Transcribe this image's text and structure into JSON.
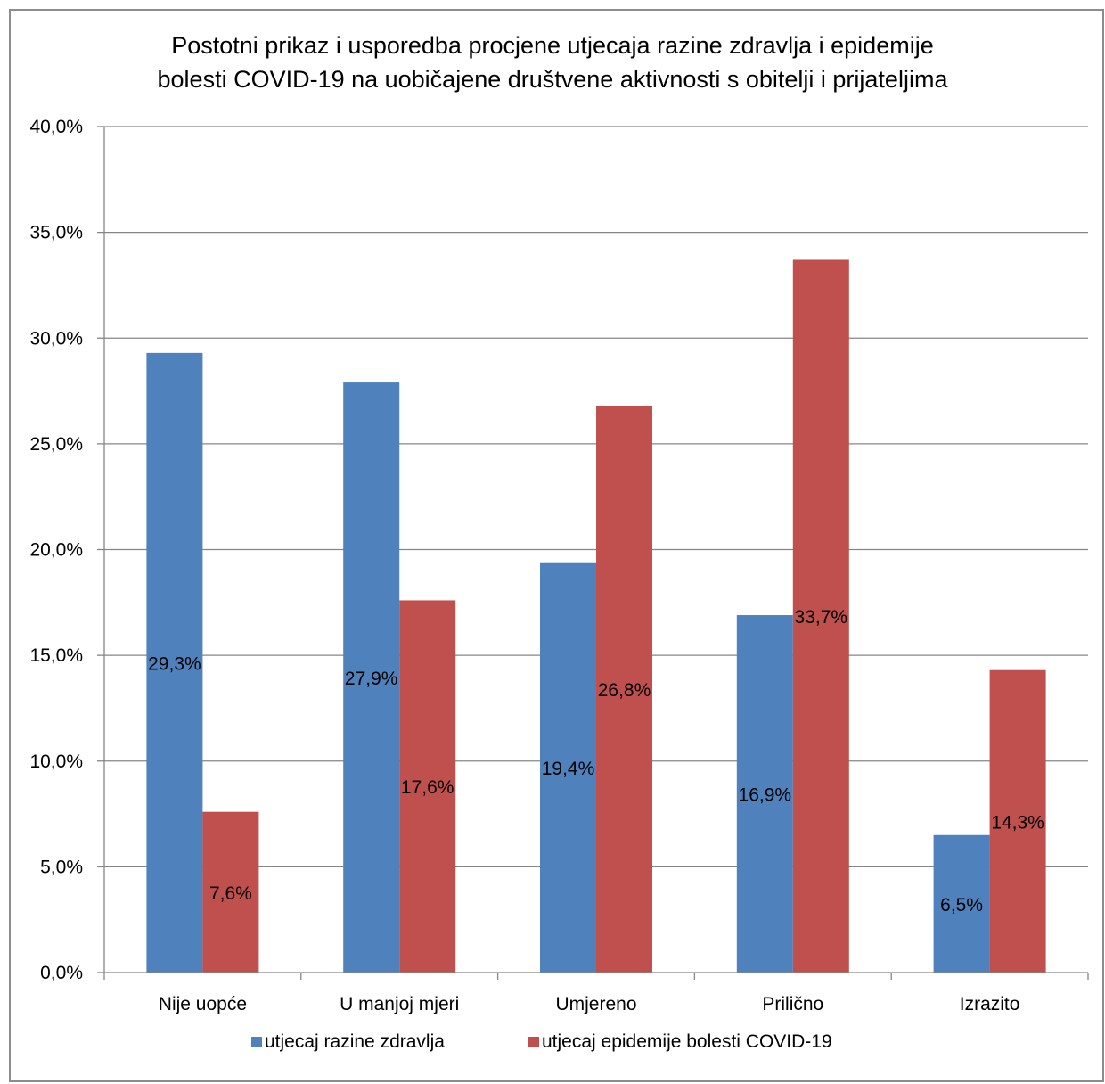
{
  "chart_data": {
    "type": "bar",
    "title_line1": "Postotni prikaz i usporedba procjene utjecaja razine zdravlja i epidemije",
    "title_line2": "bolesti COVID-19 na uobičajene društvene aktivnosti s obitelji i prijateljima",
    "categories": [
      "Nije uopće",
      "U manjoj mjeri",
      "Umjereno",
      "Prilično",
      "Izrazito"
    ],
    "series": [
      {
        "name": "utjecaj razine zdravlja",
        "color": "#4f81bd",
        "values": [
          29.3,
          27.9,
          19.4,
          16.9,
          6.5
        ],
        "labels": [
          "29,3%",
          "27,9%",
          "19,4%",
          "16,9%",
          "6,5%"
        ]
      },
      {
        "name": "utjecaj epidemije bolesti COVID-19",
        "color": "#c0504d",
        "values": [
          7.6,
          17.6,
          26.8,
          33.7,
          14.3
        ],
        "labels": [
          "7,6%",
          "17,6%",
          "26,8%",
          "33,7%",
          "14,3%"
        ]
      }
    ],
    "ylim": [
      0,
      40
    ],
    "yticks": [
      0,
      5,
      10,
      15,
      20,
      25,
      30,
      35,
      40
    ],
    "ytick_labels": [
      "0,0%",
      "5,0%",
      "10,0%",
      "15,0%",
      "20,0%",
      "25,0%",
      "30,0%",
      "35,0%",
      "40,0%"
    ],
    "grid": true,
    "legend_position": "bottom"
  }
}
